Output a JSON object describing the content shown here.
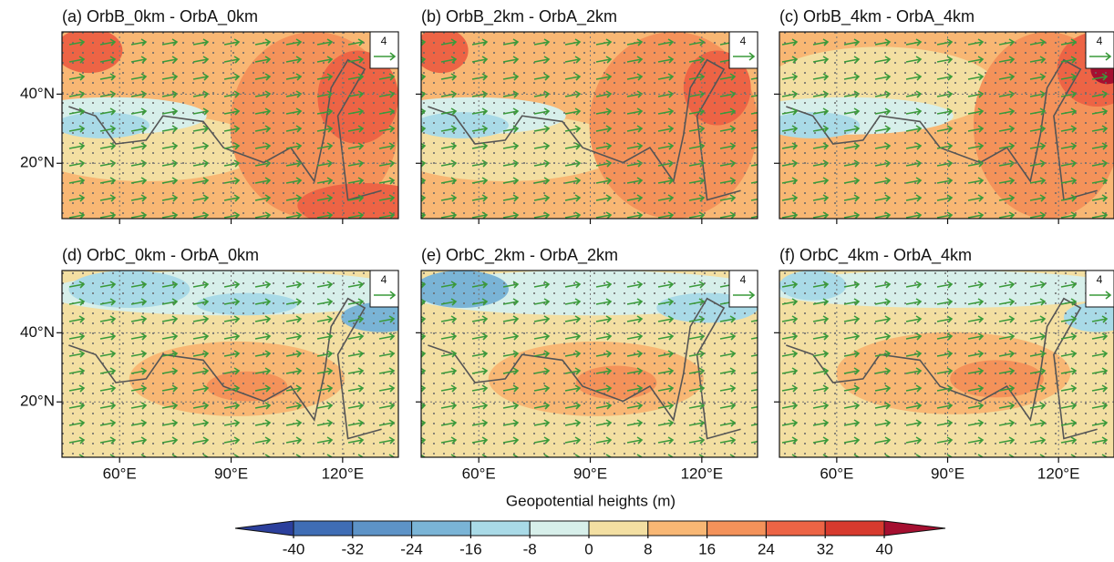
{
  "panels": [
    {
      "title": "(a) OrbB_0km - OrbA_0km",
      "ref_vector": "4"
    },
    {
      "title": "(b) OrbB_2km - OrbA_2km",
      "ref_vector": "4"
    },
    {
      "title": "(c) OrbB_4km - OrbA_4km",
      "ref_vector": "4"
    },
    {
      "title": "(d) OrbC_0km - OrbA_0km",
      "ref_vector": "4"
    },
    {
      "title": "(e) OrbC_2km - OrbA_2km",
      "ref_vector": "4"
    },
    {
      "title": "(f) OrbC_4km - OrbA_4km",
      "ref_vector": "4"
    }
  ],
  "map": {
    "lonlim": [
      44.5,
      135
    ],
    "latlim": [
      4,
      58
    ],
    "lon_ticks": [
      {
        "value": 60,
        "label": "60°E"
      },
      {
        "value": 90,
        "label": "90°E"
      },
      {
        "value": 120,
        "label": "120°E"
      }
    ],
    "lat_ticks": [
      {
        "value": 40,
        "label": "40°N"
      },
      {
        "value": 20,
        "label": "20°N"
      }
    ]
  },
  "colorbar": {
    "title": "Geopotential heights (m)",
    "ticks": [
      -40,
      -32,
      -24,
      -16,
      -8,
      0,
      8,
      16,
      24,
      32,
      40
    ],
    "colors": [
      "#2b3f9c",
      "#3f6db5",
      "#5d93c7",
      "#7ab4d6",
      "#a9dae7",
      "#d7efea",
      "#f3dfa2",
      "#f8b774",
      "#f4925a",
      "#ed6445",
      "#d73a2e",
      "#a50f30"
    ]
  }
}
